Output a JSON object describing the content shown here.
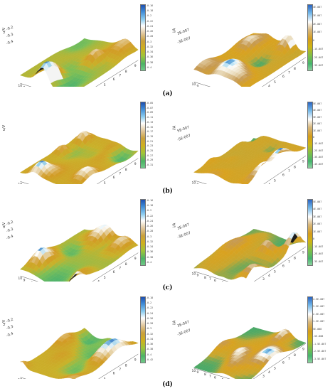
{
  "figure": {
    "rows": [
      {
        "caption": "(a)",
        "left": {
          "zlabel": "u/V",
          "zticks": [
            "-0.2",
            "-0.3",
            "-0.4"
          ],
          "colorbar": [
            "-0.16",
            "-0.18",
            "-0.2",
            "-0.22",
            "-0.24",
            "-0.26",
            "-0.28",
            "-0.3",
            "-0.32",
            "-0.34",
            "-0.36",
            "-0.38",
            "-0.4"
          ]
        },
        "right": {
          "zlabel": "i/A",
          "zticks": [
            "3E-007",
            "-3E-007"
          ],
          "colorbar": [
            "4E-007",
            "3E-007",
            "2E-007",
            "1E-007",
            "0",
            "-1E-007",
            "-2E-007",
            "-3E-007"
          ]
        }
      },
      {
        "caption": "(b)",
        "left": {
          "zlabel": "u/V",
          "zticks": [],
          "colorbar": [
            "-0.05",
            "-0.07",
            "-0.09",
            "-0.11",
            "-0.13",
            "-0.15",
            "-0.17",
            "-0.19",
            "-0.21",
            "-0.23",
            "-0.25",
            "-0.27",
            "-0.29",
            "-0.31"
          ]
        },
        "right": {
          "zlabel": "i/A",
          "zticks": [
            "5E-007",
            "-5E-007"
          ],
          "colorbar": [
            "5E-007",
            "4E-007",
            "3E-007",
            "2E-007",
            "1E-007",
            "0",
            "-1E-007",
            "-2E-007",
            "-3E-007",
            "-4E-007"
          ]
        }
      },
      {
        "caption": "(c)",
        "left": {
          "zlabel": "u/V",
          "zticks": [
            "-0.2",
            "-0.3",
            "-0.4"
          ],
          "colorbar": [
            "-0.16",
            "-0.18",
            "-0.2",
            "-0.22",
            "-0.24",
            "-0.26",
            "-0.28",
            "-0.3",
            "-0.32",
            "-0.34",
            "-0.36",
            "-0.38",
            "-0.4"
          ]
        },
        "right": {
          "zlabel": "i/A",
          "zticks": [
            "3E-007",
            "-3E-007"
          ],
          "colorbar": [
            "5E-007",
            "4E-007",
            "3E-007",
            "2E-007",
            "1E-007",
            "0",
            "-1E-007",
            "-2E-007",
            "-3E-007"
          ]
        }
      },
      {
        "caption": "(d)",
        "left": {
          "zlabel": "u/V",
          "zticks": [
            "-0.2",
            "-0.3",
            "-0.4"
          ],
          "colorbar": [
            "-0.18",
            "-0.2",
            "-0.22",
            "-0.24",
            "-0.26",
            "-0.28",
            "-0.3",
            "-0.32",
            "-0.34",
            "-0.36",
            "-0.38",
            "-0.4",
            "-0.42"
          ]
        },
        "right": {
          "zlabel": "i/A",
          "zticks": [
            "3E-007",
            "-3E-007"
          ],
          "colorbar": [
            "4.5E-007",
            "3.5E-007",
            "2.5E-007",
            "1.5E-007",
            "5E-008",
            "-5E-008",
            "-1.5E-007",
            "-2.5E-007",
            "-3.5E-007"
          ]
        }
      }
    ],
    "x_ticks": [
      "1",
      "2",
      "3",
      "4",
      "5",
      "6",
      "7",
      "8",
      "9",
      "10"
    ],
    "y_ticks": [
      "1",
      "2",
      "3",
      "4",
      "5",
      "6",
      "7",
      "8",
      "9",
      "10"
    ]
  }
}
